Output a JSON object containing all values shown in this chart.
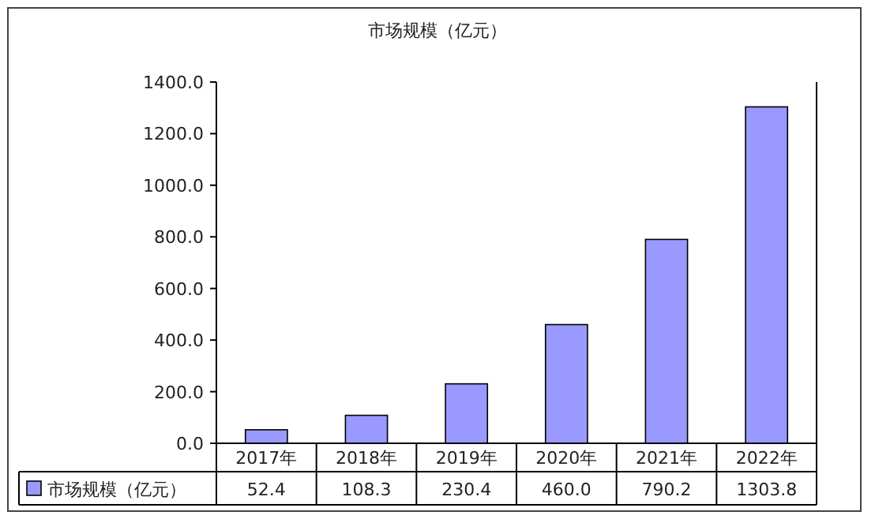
{
  "chart_data": {
    "type": "bar",
    "title": "市场规模（亿元）",
    "categories": [
      "2017年",
      "2018年",
      "2019年",
      "2020年",
      "2021年",
      "2022年"
    ],
    "series": [
      {
        "name": "市场规模（亿元）",
        "color": "#9999ff",
        "values": [
          52.4,
          108.3,
          230.4,
          460.0,
          790.2,
          1303.8
        ],
        "value_labels": [
          "52.4",
          "108.3",
          "230.4",
          "460.0",
          "790.2",
          "1303.8"
        ]
      }
    ],
    "ylim": [
      0,
      1400
    ],
    "yticks": [
      {
        "value": 0,
        "label": "0.0"
      },
      {
        "value": 200,
        "label": "200.0"
      },
      {
        "value": 400,
        "label": "400.0"
      },
      {
        "value": 600,
        "label": "600.0"
      },
      {
        "value": 800,
        "label": "800.0"
      },
      {
        "value": 1000,
        "label": "1000.0"
      },
      {
        "value": 1200,
        "label": "1200.0"
      },
      {
        "value": 1400,
        "label": "1400.0"
      }
    ],
    "grid": false,
    "legend": "bottom"
  }
}
